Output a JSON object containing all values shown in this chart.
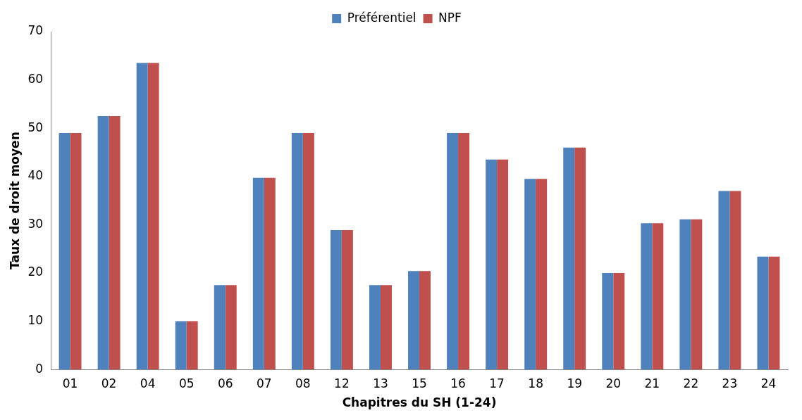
{
  "chart_data": {
    "type": "bar",
    "xlabel": "Chapitres du SH (1-24)",
    "ylabel": "Taux de droit moyen",
    "categories": [
      "01",
      "02",
      "04",
      "05",
      "06",
      "07",
      "08",
      "12",
      "13",
      "15",
      "16",
      "17",
      "18",
      "19",
      "20",
      "21",
      "22",
      "23",
      "24"
    ],
    "series": [
      {
        "name": "Préférentiel",
        "color": "#4f81bd",
        "values": [
          49,
          52.5,
          63.5,
          10,
          17.5,
          39.7,
          49,
          28.9,
          17.5,
          20.4,
          49,
          43.5,
          39.5,
          46,
          20,
          30.3,
          31.1,
          37,
          23.4
        ]
      },
      {
        "name": "NPF",
        "color": "#c0504d",
        "values": [
          49,
          52.5,
          63.5,
          10,
          17.5,
          39.7,
          49,
          28.9,
          17.5,
          20.4,
          49,
          43.5,
          39.5,
          46,
          20,
          30.3,
          31.1,
          37,
          23.4
        ]
      }
    ],
    "ylim": [
      0,
      70
    ],
    "yticks": [
      0,
      10,
      20,
      30,
      40,
      50,
      60,
      70
    ],
    "grid": false,
    "legend": "top"
  }
}
